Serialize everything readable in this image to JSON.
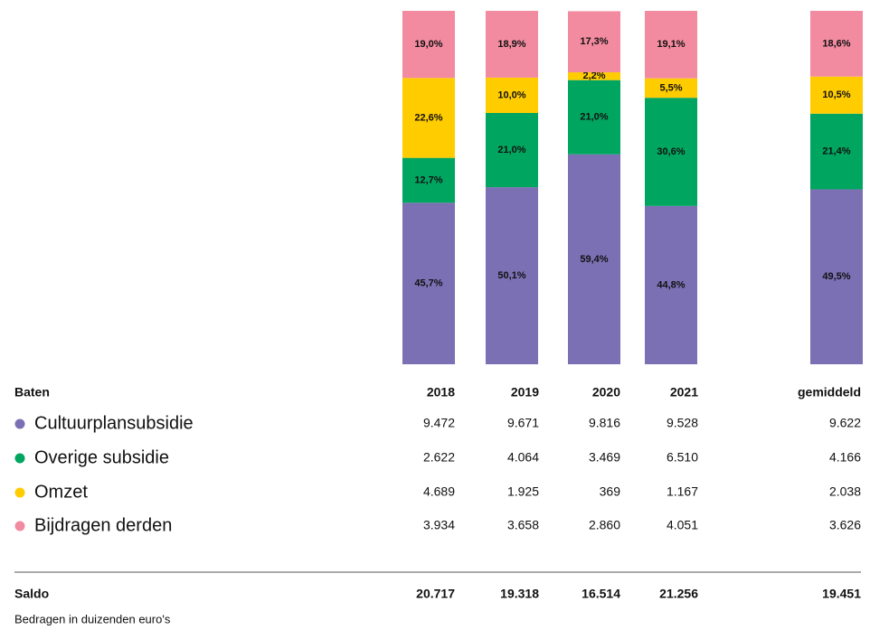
{
  "chart_data": {
    "type": "bar",
    "stacked": true,
    "categories": [
      "2018",
      "2019",
      "2020",
      "2021",
      "gemiddeld"
    ],
    "series": [
      {
        "name": "Cultuurplansubsidie",
        "color": "#7b70b4",
        "values": [
          45.7,
          50.1,
          59.4,
          44.8,
          49.5
        ],
        "value_labels": [
          "45,7%",
          "50,1%",
          "59,4%",
          "44,8%",
          "49,5%"
        ]
      },
      {
        "name": "Overige subsidie",
        "color": "#00a55f",
        "values": [
          12.7,
          21.0,
          21.0,
          30.6,
          21.4
        ],
        "value_labels": [
          "12,7%",
          "21,0%",
          "21,0%",
          "30,6%",
          "21,4%"
        ]
      },
      {
        "name": "Omzet",
        "color": "#ffcc00",
        "values": [
          22.6,
          10.0,
          2.2,
          5.5,
          10.5
        ],
        "value_labels": [
          "22,6%",
          "10,0%",
          "2,2%",
          "5,5%",
          "10,5%"
        ]
      },
      {
        "name": "Bijdragen derden",
        "color": "#f28ba0",
        "values": [
          19.0,
          18.9,
          17.3,
          19.1,
          18.6
        ],
        "value_labels": [
          "19,0%",
          "18,9%",
          "17,3%",
          "19,1%",
          "18,6%"
        ]
      }
    ],
    "ylim": [
      0,
      100
    ]
  },
  "table": {
    "header": "Baten",
    "rows": [
      [
        "9.472",
        "9.671",
        "9.816",
        "9.528",
        "9.622"
      ],
      [
        "2.622",
        "4.064",
        "3.469",
        "6.510",
        "4.166"
      ],
      [
        "4.689",
        "1.925",
        "369",
        "1.167",
        "2.038"
      ],
      [
        "3.934",
        "3.658",
        "2.860",
        "4.051",
        "3.626"
      ]
    ],
    "total_label": "Saldo",
    "total": [
      "20.717",
      "19.318",
      "16.514",
      "21.256",
      "19.451"
    ],
    "footnote": "Bedragen in duizenden euro's"
  }
}
